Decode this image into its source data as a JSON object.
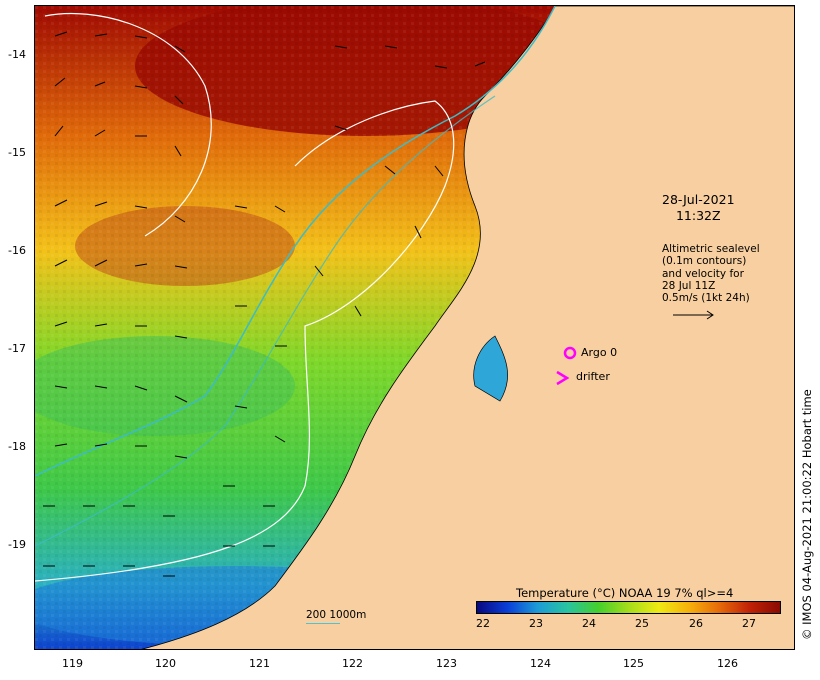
{
  "map": {
    "date_line1": "28-Jul-2021",
    "date_line2": "11:32Z",
    "sealevel_lines": [
      "Altimetric sealevel",
      "(0.1m contours)",
      "and velocity for",
      "28 Jul 11Z",
      "0.5m/s (1kt 24h)"
    ],
    "markers": {
      "argo_label": "Argo 0",
      "drifter_label": "drifter",
      "argo_color": "#ff00ff",
      "drifter_color": "#ff00ff"
    },
    "scale": {
      "label": "200  1000m",
      "color": "#4fc4d0"
    },
    "copyright": "© IMOS 04-Aug-2021 21:00:22 Hobart time",
    "land_color": "#f8cfa0",
    "contour_color": "#ffffff",
    "isobath_color": "#3cbcc8",
    "y_ticks": [
      "-14",
      "-15",
      "-16",
      "-17",
      "-18",
      "-19"
    ],
    "x_ticks": [
      "119",
      "120",
      "121",
      "122",
      "123",
      "124",
      "125",
      "126"
    ]
  },
  "legend": {
    "title": "Temperature (°C) NOAA 19 7% ql>=4",
    "ticks": [
      "22",
      "23",
      "24",
      "25",
      "26",
      "27"
    ],
    "colors": [
      "#08087f",
      "#0a3ed8",
      "#1d9bd6",
      "#29c4a0",
      "#45cf2d",
      "#a5dd1b",
      "#eeea14",
      "#f6b00c",
      "#e66a0a",
      "#c02206",
      "#8a0a02"
    ]
  }
}
